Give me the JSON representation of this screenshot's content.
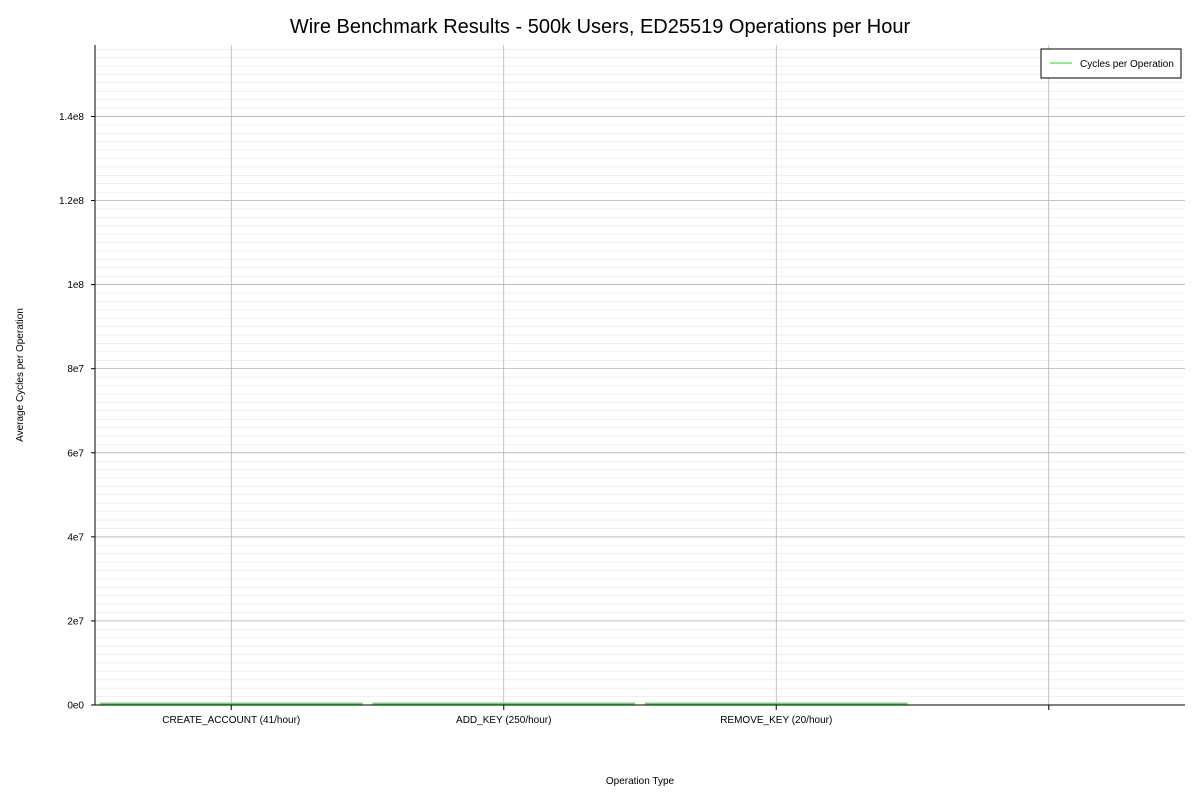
{
  "chart_data": {
    "type": "bar",
    "title": "Wire Benchmark Results - 500k Users, ED25519 Operations per Hour",
    "xlabel": "Operation Type",
    "ylabel": "Average Cycles per Operation",
    "categories": [
      "CREATE_ACCOUNT (41/hour)",
      "ADD_KEY (250/hour)",
      "REMOVE_KEY (20/hour)"
    ],
    "series": [
      {
        "name": "Cycles per Operation",
        "values": [
          500000,
          500000,
          500000
        ]
      }
    ],
    "ylim": [
      0,
      157000000
    ],
    "yticks": [
      {
        "value": 0,
        "label": "0e0"
      },
      {
        "value": 20000000,
        "label": "2e7"
      },
      {
        "value": 40000000,
        "label": "4e7"
      },
      {
        "value": 60000000,
        "label": "6e7"
      },
      {
        "value": 80000000,
        "label": "8e7"
      },
      {
        "value": 100000000,
        "label": "1e8"
      },
      {
        "value": 120000000,
        "label": "1.2e8"
      },
      {
        "value": 140000000,
        "label": "1.4e8"
      }
    ],
    "minor_ytick_step": 2000000,
    "grid": true,
    "legend_position": "top-right",
    "colors": {
      "series": "#5ddb5d",
      "grid_major": "#aaaaaa",
      "grid_minor": "#e6e6e6",
      "axis": "#000000"
    }
  }
}
